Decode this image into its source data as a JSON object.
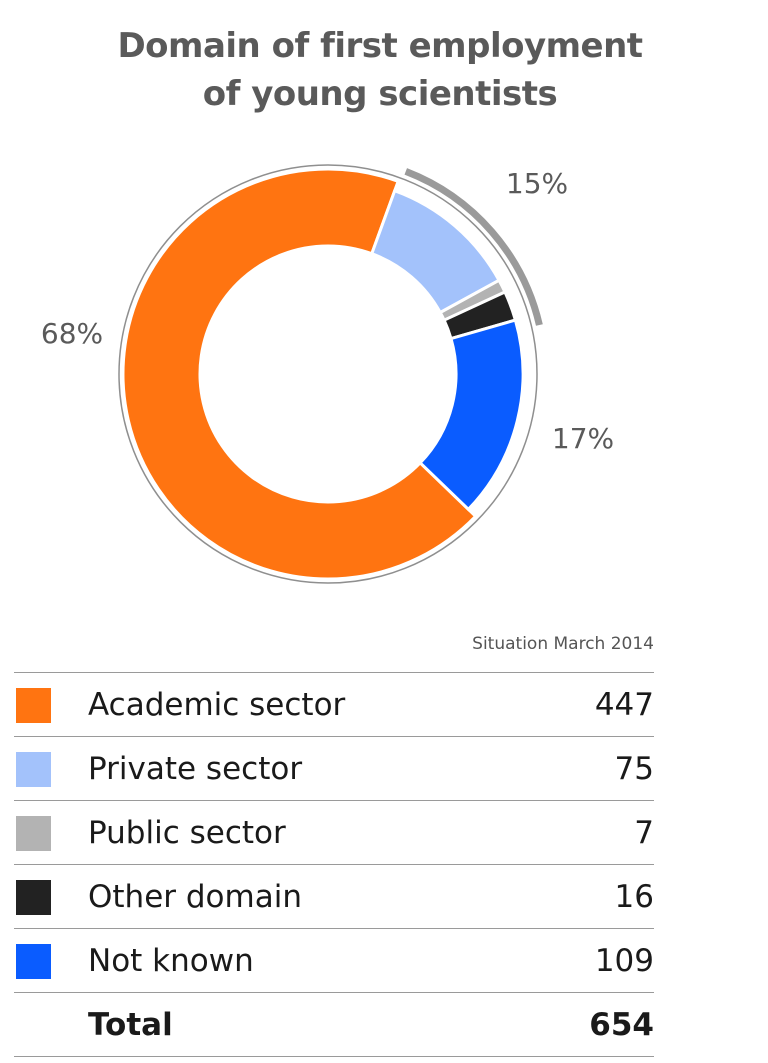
{
  "chart_data": {
    "type": "pie",
    "title": "Domain of first employment of young scientists",
    "title_lines": [
      "Domain of first employment",
      "of young scientists"
    ],
    "categories": [
      "Academic sector",
      "Private sector",
      "Public sector",
      "Other domain",
      "Not known"
    ],
    "values": [
      447,
      75,
      7,
      16,
      109
    ],
    "colors": [
      "#ff7411",
      "#a3c2fb",
      "#b3b3b3",
      "#222222",
      "#0a5cff"
    ],
    "donut": true,
    "percent_labels": [
      {
        "text": "68%",
        "covers": [
          "Academic sector"
        ]
      },
      {
        "text": "15%",
        "covers": [
          "Private sector",
          "Public sector",
          "Other domain"
        ]
      },
      {
        "text": "17%",
        "covers": [
          "Not known"
        ]
      }
    ],
    "legend_placement": "bottom"
  },
  "note": "Situation March 2014",
  "table": {
    "rows": [
      {
        "label": "Academic sector",
        "value": "447",
        "color": "#ff7411"
      },
      {
        "label": "Private sector",
        "value": "75",
        "color": "#a3c2fb"
      },
      {
        "label": "Public sector",
        "value": "7",
        "color": "#b3b3b3"
      },
      {
        "label": "Other domain",
        "value": "16",
        "color": "#222222"
      },
      {
        "label": "Not known",
        "value": "109",
        "color": "#0a5cff"
      }
    ],
    "total": {
      "label": "Total",
      "value": "654"
    }
  }
}
